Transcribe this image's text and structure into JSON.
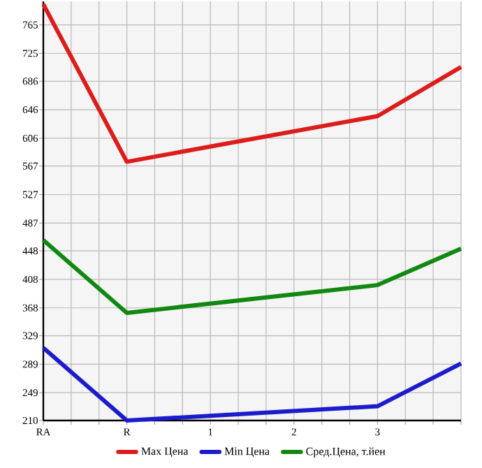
{
  "chart_data": {
    "type": "line",
    "categories": [
      "RA",
      "R",
      "1",
      "2",
      "3",
      null
    ],
    "series": [
      {
        "name": "Max Цена",
        "color": "#dd1c1c",
        "values": [
          794,
          573,
          null,
          null,
          637,
          706
        ]
      },
      {
        "name": "Min Цена",
        "color": "#1c1ccc",
        "values": [
          312,
          210,
          null,
          null,
          230,
          290
        ]
      },
      {
        "name": "Сред.Цена, т.йен",
        "color": "#118811",
        "values": [
          463,
          361,
          null,
          null,
          400,
          451
        ]
      }
    ],
    "ylim": [
      210,
      798
    ],
    "yticks": [
      210,
      249,
      289,
      329,
      368,
      408,
      448,
      487,
      527,
      567,
      606,
      646,
      686,
      725,
      765
    ],
    "grid": true,
    "legend": "bottom",
    "marker": "none",
    "line_style": "solid"
  }
}
